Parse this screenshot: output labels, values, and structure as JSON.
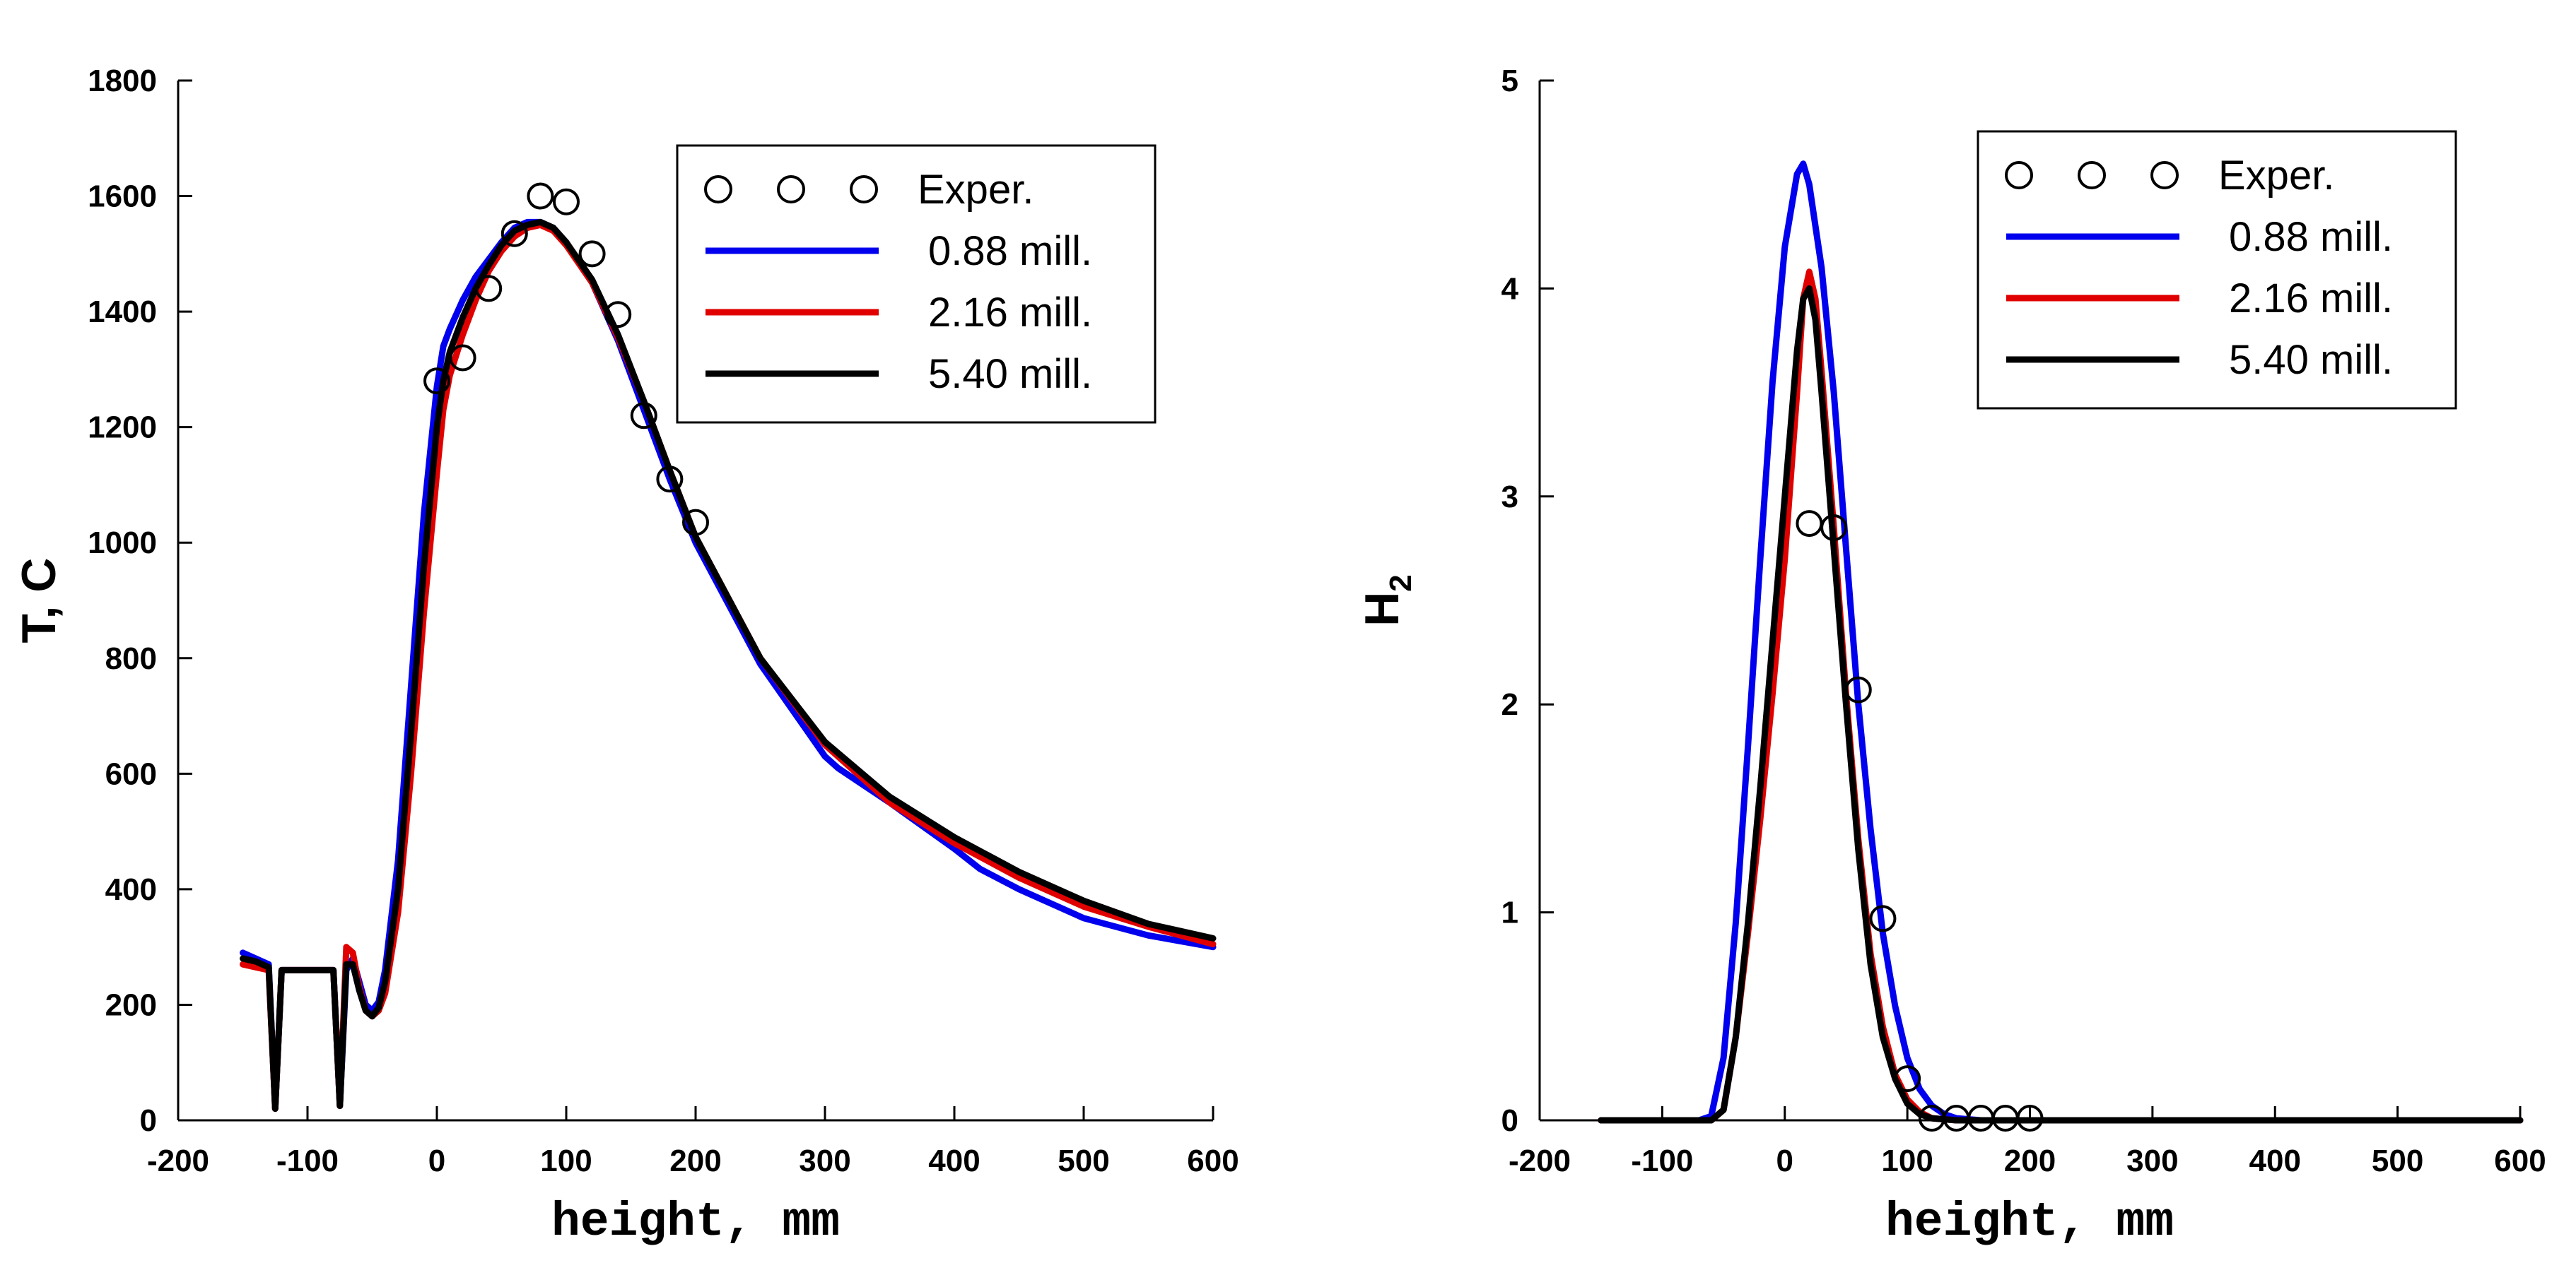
{
  "chart_data": [
    {
      "type": "line",
      "title": "",
      "xlabel": "height, mm",
      "ylabel": "T, C",
      "xlim": [
        -200,
        600
      ],
      "ylim": [
        0,
        1800
      ],
      "xticks": [
        -200,
        -100,
        0,
        100,
        200,
        300,
        400,
        500,
        600
      ],
      "yticks": [
        0,
        200,
        400,
        600,
        800,
        1000,
        1200,
        1400,
        1600,
        1800
      ],
      "xtick_labels": [
        "-200",
        "-100",
        "0",
        "100",
        "200",
        "300",
        "400",
        "500",
        "600"
      ],
      "ytick_labels": [
        "0",
        "200",
        "400",
        "600",
        "800",
        "1000",
        "1200",
        "1400",
        "1600",
        "1800"
      ],
      "legend": {
        "position": "top-right",
        "entries": [
          "Exper.",
          "0.88 mill.",
          "2.16 mill.",
          "5.40 mill."
        ]
      },
      "scatter": {
        "name": "Exper.",
        "x": [
          0,
          20,
          40,
          60,
          80,
          100,
          120,
          140,
          160,
          180,
          200
        ],
        "y": [
          1280,
          1320,
          1440,
          1535,
          1600,
          1590,
          1500,
          1395,
          1220,
          1110,
          1035
        ]
      },
      "series": [
        {
          "name": "0.88 mill.",
          "color": "#0000ee",
          "x": [
            -150,
            -140,
            -130,
            -125,
            -120,
            -110,
            -90,
            -80,
            -75,
            -70,
            -65,
            -60,
            -55,
            -50,
            -45,
            -40,
            -30,
            -20,
            -10,
            0,
            5,
            10,
            20,
            30,
            40,
            50,
            60,
            70,
            80,
            90,
            100,
            120,
            140,
            160,
            180,
            200,
            250,
            300,
            310,
            350,
            400,
            420,
            450,
            500,
            550,
            600
          ],
          "y": [
            290,
            280,
            270,
            20,
            260,
            260,
            260,
            260,
            25,
            260,
            280,
            240,
            200,
            190,
            205,
            260,
            450,
            750,
            1050,
            1270,
            1340,
            1370,
            1420,
            1460,
            1490,
            1520,
            1545,
            1555,
            1555,
            1545,
            1520,
            1450,
            1350,
            1230,
            1110,
            1000,
            790,
            630,
            610,
            550,
            470,
            435,
            400,
            350,
            320,
            300
          ]
        },
        {
          "name": "2.16 mill.",
          "color": "#e00000",
          "x": [
            -150,
            -140,
            -130,
            -125,
            -120,
            -110,
            -90,
            -80,
            -75,
            -70,
            -65,
            -60,
            -55,
            -50,
            -45,
            -40,
            -30,
            -20,
            -10,
            0,
            5,
            10,
            20,
            30,
            40,
            50,
            60,
            70,
            80,
            90,
            100,
            120,
            140,
            160,
            180,
            200,
            250,
            300,
            350,
            400,
            450,
            500,
            550,
            600
          ],
          "y": [
            270,
            265,
            260,
            20,
            260,
            260,
            260,
            260,
            25,
            300,
            290,
            230,
            190,
            180,
            190,
            220,
            360,
            600,
            880,
            1120,
            1230,
            1290,
            1360,
            1420,
            1470,
            1505,
            1530,
            1545,
            1550,
            1540,
            1515,
            1450,
            1355,
            1245,
            1125,
            1010,
            800,
            650,
            550,
            480,
            420,
            370,
            335,
            305
          ]
        },
        {
          "name": "5.40 mill.",
          "color": "#000000",
          "x": [
            -150,
            -140,
            -130,
            -125,
            -120,
            -110,
            -90,
            -80,
            -75,
            -70,
            -65,
            -60,
            -55,
            -50,
            -45,
            -40,
            -30,
            -20,
            -10,
            0,
            5,
            10,
            20,
            30,
            40,
            50,
            60,
            70,
            80,
            90,
            100,
            120,
            140,
            160,
            180,
            200,
            250,
            300,
            350,
            400,
            450,
            500,
            550,
            600
          ],
          "y": [
            280,
            275,
            265,
            20,
            260,
            260,
            260,
            260,
            25,
            270,
            270,
            225,
            190,
            180,
            195,
            240,
            400,
            670,
            960,
            1200,
            1280,
            1330,
            1390,
            1440,
            1480,
            1515,
            1540,
            1550,
            1555,
            1545,
            1520,
            1455,
            1360,
            1245,
            1125,
            1010,
            800,
            655,
            560,
            490,
            430,
            380,
            340,
            315
          ]
        }
      ]
    },
    {
      "type": "line",
      "title": "",
      "xlabel": "height, mm",
      "ylabel": "H",
      "ylabel_subscript": "2",
      "xlim": [
        -200,
        600
      ],
      "ylim": [
        0,
        5
      ],
      "xticks": [
        -200,
        -100,
        0,
        100,
        200,
        300,
        400,
        500,
        600
      ],
      "yticks": [
        0,
        1,
        2,
        3,
        4,
        5
      ],
      "xtick_labels": [
        "-200",
        "-100",
        "0",
        "100",
        "200",
        "300",
        "400",
        "500",
        "600"
      ],
      "ytick_labels": [
        "0",
        "1",
        "2",
        "3",
        "4",
        "5"
      ],
      "legend": {
        "position": "top-right",
        "entries": [
          "Exper.",
          "0.88 mill.",
          "2.16 mill.",
          "5.40 mill."
        ]
      },
      "scatter": {
        "name": "Exper.",
        "x": [
          20,
          40,
          60,
          80,
          100,
          120,
          140,
          160,
          180,
          200
        ],
        "y": [
          2.87,
          2.85,
          2.07,
          0.97,
          0.2,
          0.01,
          0.01,
          0.01,
          0.01,
          0.01
        ]
      },
      "series": [
        {
          "name": "0.88 mill.",
          "color": "#0000ee",
          "x": [
            -150,
            -70,
            -60,
            -50,
            -40,
            -30,
            -20,
            -10,
            0,
            10,
            15,
            20,
            30,
            40,
            50,
            60,
            70,
            80,
            90,
            100,
            110,
            120,
            130,
            140,
            160,
            200,
            300,
            600
          ],
          "y": [
            0,
            0,
            0.02,
            0.3,
            0.95,
            1.8,
            2.7,
            3.55,
            4.2,
            4.55,
            4.6,
            4.5,
            4.1,
            3.5,
            2.75,
            2.0,
            1.4,
            0.9,
            0.55,
            0.3,
            0.15,
            0.07,
            0.03,
            0.01,
            0,
            0,
            0,
            0
          ]
        },
        {
          "name": "2.16 mill.",
          "color": "#e00000",
          "x": [
            -150,
            -60,
            -50,
            -40,
            -30,
            -20,
            -10,
            0,
            10,
            15,
            20,
            25,
            30,
            40,
            50,
            60,
            70,
            80,
            90,
            100,
            110,
            120,
            140,
            200,
            600
          ],
          "y": [
            0,
            0,
            0.05,
            0.4,
            0.9,
            1.45,
            2.05,
            2.7,
            3.5,
            3.95,
            4.08,
            3.95,
            3.6,
            2.85,
            2.05,
            1.35,
            0.8,
            0.45,
            0.22,
            0.1,
            0.04,
            0.01,
            0,
            0,
            0
          ]
        },
        {
          "name": "5.40 mill.",
          "color": "#000000",
          "x": [
            -150,
            -60,
            -50,
            -40,
            -30,
            -20,
            -10,
            0,
            10,
            15,
            20,
            25,
            30,
            40,
            50,
            60,
            70,
            80,
            90,
            100,
            110,
            120,
            140,
            200,
            600
          ],
          "y": [
            0,
            0,
            0.05,
            0.4,
            0.95,
            1.6,
            2.3,
            3.0,
            3.7,
            3.95,
            4.0,
            3.85,
            3.5,
            2.75,
            2.0,
            1.3,
            0.75,
            0.4,
            0.2,
            0.08,
            0.03,
            0.01,
            0,
            0,
            0
          ]
        }
      ]
    }
  ]
}
